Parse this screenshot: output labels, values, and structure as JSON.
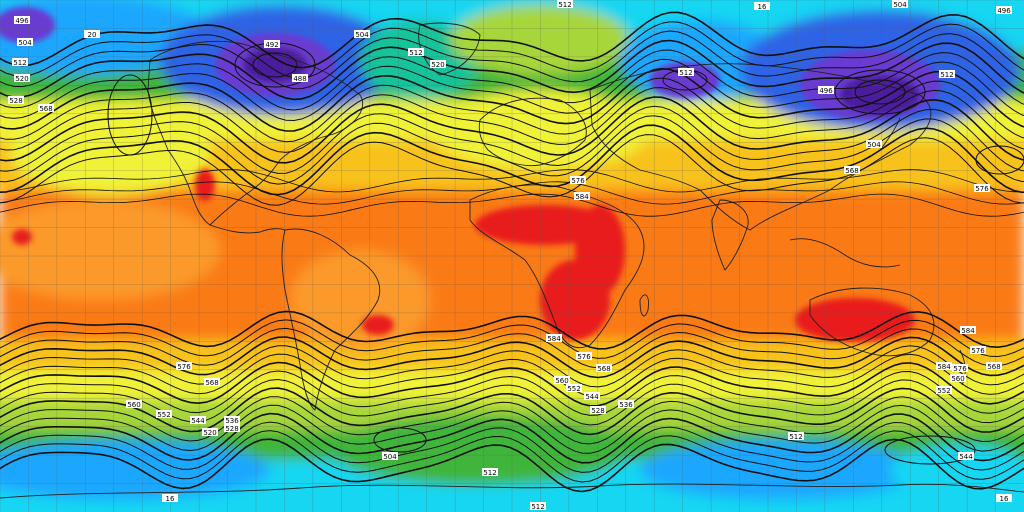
{
  "map": {
    "colors": {
      "deep_violet": "#4b1f9e",
      "violet": "#6a3ad1",
      "blue": "#2d63e6",
      "sky": "#1ea7ff",
      "cyan": "#13d6f2",
      "teal": "#17c39a",
      "green": "#3fb53a",
      "lime": "#a7d63a",
      "yellow": "#f0f238",
      "gold": "#f8c21b",
      "orange": "#fa7a12",
      "orange_light": "#fb9a2a",
      "red": "#e81f1f",
      "contour": "#111111",
      "coast": "#222222",
      "grid": "#5a5a5a"
    },
    "contour_labels": [
      {
        "text": "512",
        "id": "lbl-512-top"
      },
      {
        "text": "504",
        "id": "lbl-504-tr"
      },
      {
        "text": "496",
        "id": "lbl-496-tr"
      },
      {
        "text": "496",
        "id": "lbl-496-tl"
      },
      {
        "text": "504",
        "id": "lbl-504-tl"
      },
      {
        "text": "512",
        "id": "lbl-512-tl"
      },
      {
        "text": "520",
        "id": "lbl-520-tl"
      },
      {
        "text": "528",
        "id": "lbl-528-tl"
      },
      {
        "text": "568",
        "id": "lbl-568-tl"
      },
      {
        "text": "492",
        "id": "lbl-492-na"
      },
      {
        "text": "488",
        "id": "lbl-488-na"
      },
      {
        "text": "504",
        "id": "lbl-504-na"
      },
      {
        "text": "512",
        "id": "lbl-512-at"
      },
      {
        "text": "520",
        "id": "lbl-520-at"
      },
      {
        "text": "512",
        "id": "lbl-512-ru"
      },
      {
        "text": "496",
        "id": "lbl-496-as"
      },
      {
        "text": "512",
        "id": "lbl-512-as"
      },
      {
        "text": "504",
        "id": "lbl-504-as"
      },
      {
        "text": "568",
        "id": "lbl-568-as"
      },
      {
        "text": "576",
        "id": "lbl-576-pac"
      },
      {
        "text": "584",
        "id": "lbl-584-af"
      },
      {
        "text": "576",
        "id": "lbl-576-af"
      },
      {
        "text": "584",
        "id": "lbl-584-sa"
      },
      {
        "text": "576",
        "id": "lbl-576-sa"
      },
      {
        "text": "568",
        "id": "lbl-568-sa"
      },
      {
        "text": "560",
        "id": "lbl-560-so"
      },
      {
        "text": "552",
        "id": "lbl-552-so"
      },
      {
        "text": "544",
        "id": "lbl-544-so"
      },
      {
        "text": "528",
        "id": "lbl-528-so"
      },
      {
        "text": "536",
        "id": "lbl-536-so"
      },
      {
        "text": "576",
        "id": "lbl-576-wp"
      },
      {
        "text": "568",
        "id": "lbl-568-wp"
      },
      {
        "text": "560",
        "id": "lbl-560-wp"
      },
      {
        "text": "552",
        "id": "lbl-552-wp"
      },
      {
        "text": "544",
        "id": "lbl-544-wp"
      },
      {
        "text": "536",
        "id": "lbl-536-wp"
      },
      {
        "text": "528",
        "id": "lbl-528-wp"
      },
      {
        "text": "520",
        "id": "lbl-520-wp"
      },
      {
        "text": "576",
        "id": "lbl-576-au"
      },
      {
        "text": "584",
        "id": "lbl-584-au"
      },
      {
        "text": "584",
        "id": "lbl-584-au2"
      },
      {
        "text": "576",
        "id": "lbl-576-au2"
      },
      {
        "text": "568",
        "id": "lbl-568-au"
      },
      {
        "text": "560",
        "id": "lbl-560-au"
      },
      {
        "text": "552",
        "id": "lbl-552-au"
      },
      {
        "text": "544",
        "id": "lbl-544-au"
      },
      {
        "text": "512",
        "id": "lbl-512-soc"
      },
      {
        "text": "504",
        "id": "lbl-504-ant"
      },
      {
        "text": "512",
        "id": "lbl-512-bot"
      },
      {
        "text": "512",
        "id": "lbl-512-ant2"
      },
      {
        "text": "16",
        "id": "lbl-16-br"
      },
      {
        "text": "16",
        "id": "lbl-16-bl"
      },
      {
        "text": "16",
        "id": "lbl-16-top"
      },
      {
        "text": "20",
        "id": "lbl-20-tl"
      }
    ]
  }
}
